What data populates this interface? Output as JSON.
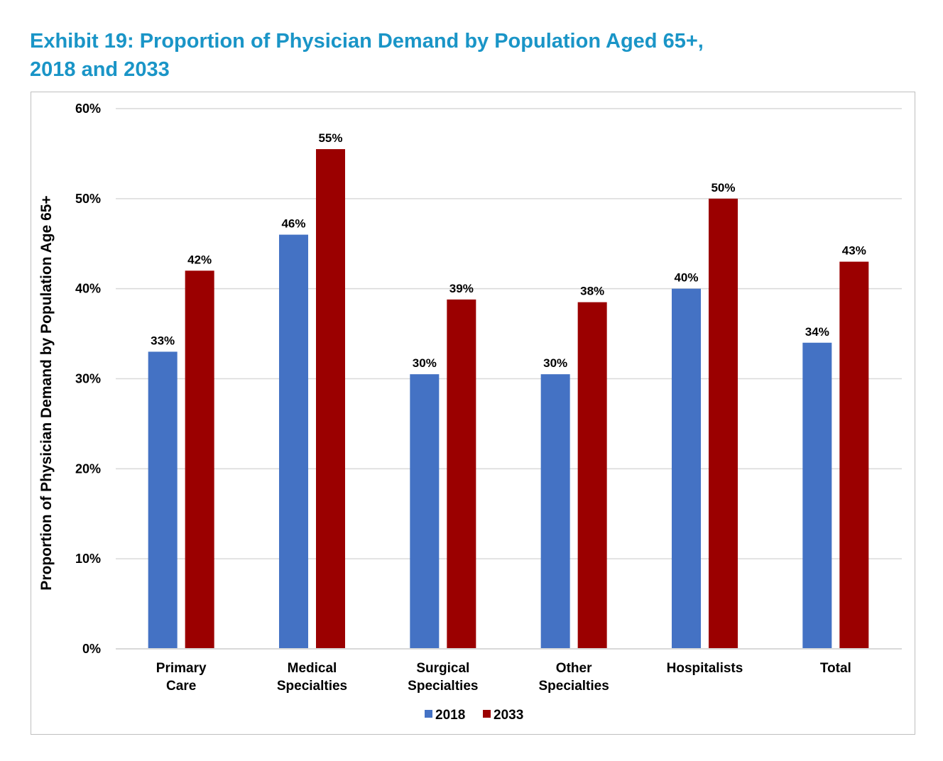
{
  "title": {
    "line1": "Exhibit 19: Proportion of Physician Demand by Population Aged 65+,",
    "line2": "2018 and 2033"
  },
  "colors": {
    "title": "#1a95c7",
    "series_2018": "#4472c4",
    "series_2033": "#9b0000",
    "grid": "#d9d9d9",
    "frame": "#bfbfbf"
  },
  "chart_data": {
    "type": "bar",
    "categories": [
      [
        "Primary",
        "Care"
      ],
      [
        "Medical",
        "Specialties"
      ],
      [
        "Surgical",
        "Specialties"
      ],
      [
        "Other",
        "Specialties"
      ],
      [
        "Hospitalists"
      ],
      [
        "Total"
      ]
    ],
    "series": [
      {
        "name": "2018",
        "values": [
          0.33,
          0.46,
          0.305,
          0.305,
          0.4,
          0.34
        ],
        "labels": [
          "33%",
          "46%",
          "30%",
          "30%",
          "40%",
          "34%"
        ]
      },
      {
        "name": "2033",
        "values": [
          0.42,
          0.555,
          0.388,
          0.385,
          0.5,
          0.43
        ],
        "labels": [
          "42%",
          "55%",
          "39%",
          "38%",
          "50%",
          "43%"
        ]
      }
    ],
    "ylabel": "Proportion of Physician Demand by Population Age 65+",
    "ylim": [
      0,
      0.6
    ],
    "yticks": [
      "0%",
      "10%",
      "20%",
      "30%",
      "40%",
      "50%",
      "60%"
    ],
    "grid": true,
    "legend": "bottom"
  }
}
